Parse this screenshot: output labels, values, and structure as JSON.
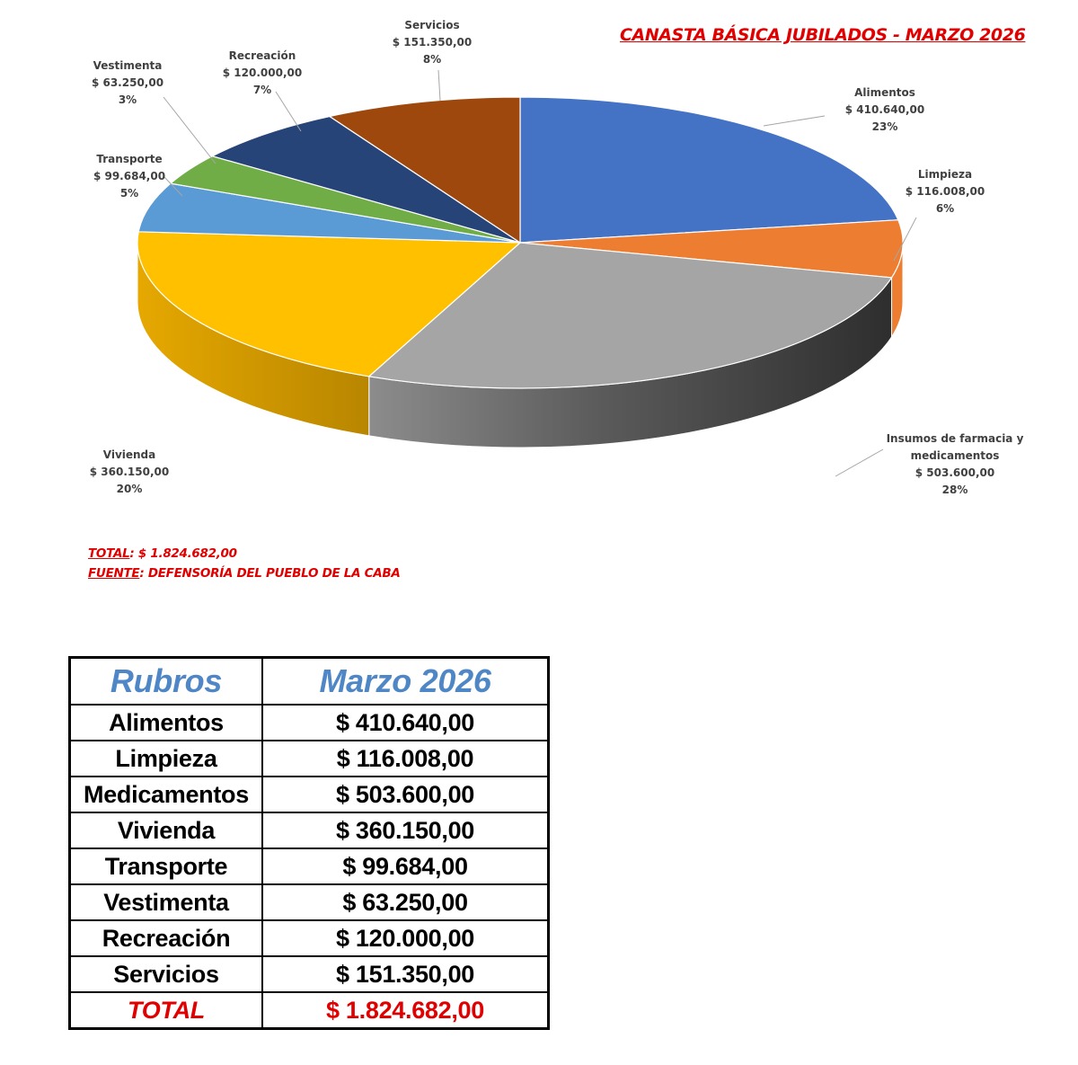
{
  "chart_data": {
    "type": "pie",
    "title": "CANASTA BÁSICA JUBILADOS - MARZO 2026",
    "slices": [
      {
        "label": [
          "Alimentos"
        ],
        "value": "$ 410.640,00",
        "pct": "23%",
        "amount": 410640,
        "color": "#4472c4"
      },
      {
        "label": [
          "Limpieza"
        ],
        "value": "$ 116.008,00",
        "pct": "6%",
        "amount": 116008,
        "color": "#ed7d31"
      },
      {
        "label": [
          "Insumos de farmacia y",
          "medicamentos"
        ],
        "value": "$ 503.600,00",
        "pct": "28%",
        "amount": 503600,
        "color": "#a5a5a5"
      },
      {
        "label": [
          "Vivienda"
        ],
        "value": "$ 360.150,00",
        "pct": "20%",
        "amount": 360150,
        "color": "#ffc000"
      },
      {
        "label": [
          "Transporte"
        ],
        "value": "$ 99.684,00",
        "pct": "5%",
        "amount": 99684,
        "color": "#5b9bd5"
      },
      {
        "label": [
          "Vestimenta"
        ],
        "value": "$ 63.250,00",
        "pct": "3%",
        "amount": 63250,
        "color": "#70ad47"
      },
      {
        "label": [
          "Recreación"
        ],
        "value": "$ 120.000,00",
        "pct": "7%",
        "amount": 120000,
        "color": "#264478"
      },
      {
        "label": [
          "Servicios"
        ],
        "value": "$ 151.350,00",
        "pct": "8%",
        "amount": 151350,
        "color": "#9e480e"
      }
    ]
  },
  "notes": {
    "total_key": "TOTAL",
    "total_value": ": $ 1.824.682,00",
    "source_key": "FUENTE",
    "source_value": ": DEFENSORÍA DEL PUEBLO DE LA CABA"
  },
  "table": {
    "headers": [
      "Rubros",
      "Marzo 2026"
    ],
    "rows": [
      [
        "Alimentos",
        "$ 410.640,00"
      ],
      [
        "Limpieza",
        "$ 116.008,00"
      ],
      [
        "Medicamentos",
        "$ 503.600,00"
      ],
      [
        "Vivienda",
        "$ 360.150,00"
      ],
      [
        "Transporte",
        "$ 99.684,00"
      ],
      [
        "Vestimenta",
        "$ 63.250,00"
      ],
      [
        "Recreación",
        "$ 120.000,00"
      ],
      [
        "Servicios",
        "$ 151.350,00"
      ]
    ],
    "total": [
      "TOTAL",
      "$ 1.824.682,00"
    ]
  }
}
